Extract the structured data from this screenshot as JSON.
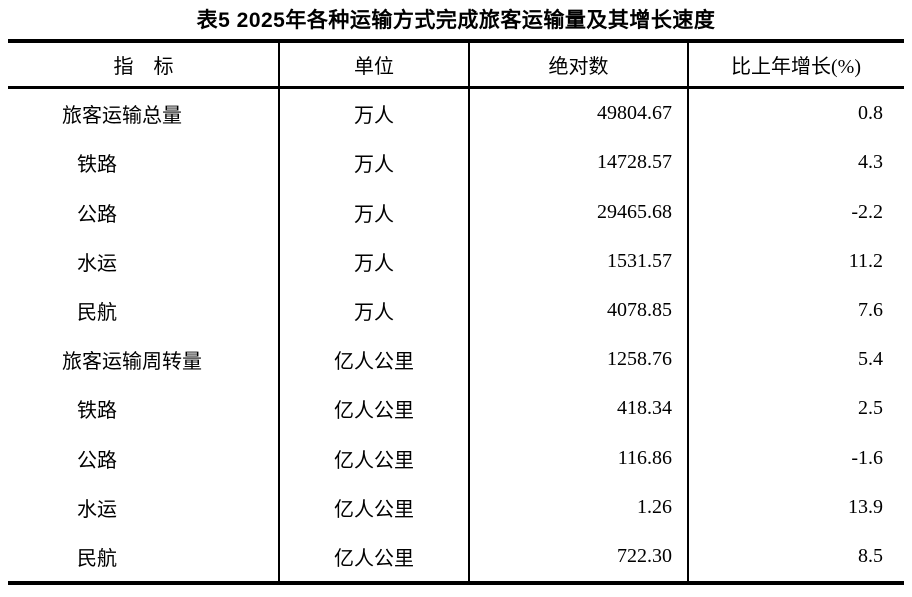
{
  "document": {
    "title": "表5  2025年各种运输方式完成旅客运输量及其增长速度"
  },
  "table": {
    "headers": {
      "indicator": "指　标",
      "unit": "单位",
      "absolute": "绝对数",
      "growth": "比上年增长(%)"
    },
    "rows": [
      {
        "indicator": "旅客运输总量",
        "unit": "万人",
        "absolute": "49804.67",
        "growth": "0.8"
      },
      {
        "indicator": "铁路",
        "unit": "万人",
        "absolute": "14728.57",
        "growth": "4.3"
      },
      {
        "indicator": "公路",
        "unit": "万人",
        "absolute": "29465.68",
        "growth": "-2.2"
      },
      {
        "indicator": "水运",
        "unit": "万人",
        "absolute": "1531.57",
        "growth": "11.2"
      },
      {
        "indicator": "民航",
        "unit": "万人",
        "absolute": "4078.85",
        "growth": "7.6"
      },
      {
        "indicator": "旅客运输周转量",
        "unit": "亿人公里",
        "absolute": "1258.76",
        "growth": "5.4"
      },
      {
        "indicator": "铁路",
        "unit": "亿人公里",
        "absolute": "418.34",
        "growth": "2.5"
      },
      {
        "indicator": "公路",
        "unit": "亿人公里",
        "absolute": "116.86",
        "growth": "-1.6"
      },
      {
        "indicator": "水运",
        "unit": "亿人公里",
        "absolute": "1.26",
        "growth": "13.9"
      },
      {
        "indicator": "民航",
        "unit": "亿人公里",
        "absolute": "722.30",
        "growth": "8.5"
      }
    ]
  },
  "chart_data": {
    "type": "table",
    "title": "表5  2025年各种运输方式完成旅客运输量及其增长速度",
    "columns": [
      "指标",
      "单位",
      "绝对数",
      "比上年增长(%)"
    ],
    "rows": [
      [
        "旅客运输总量",
        "万人",
        49804.67,
        0.8
      ],
      [
        "铁路",
        "万人",
        14728.57,
        4.3
      ],
      [
        "公路",
        "万人",
        29465.68,
        -2.2
      ],
      [
        "水运",
        "万人",
        1531.57,
        11.2
      ],
      [
        "民航",
        "万人",
        4078.85,
        7.6
      ],
      [
        "旅客运输周转量",
        "亿人公里",
        1258.76,
        5.4
      ],
      [
        "铁路",
        "亿人公里",
        418.34,
        2.5
      ],
      [
        "公路",
        "亿人公里",
        116.86,
        -1.6
      ],
      [
        "水运",
        "亿人公里",
        1.26,
        13.9
      ],
      [
        "民航",
        "亿人公里",
        722.3,
        8.5
      ]
    ]
  },
  "colors": {
    "text": "#000000",
    "background": "#ffffff",
    "border": "#000000"
  }
}
